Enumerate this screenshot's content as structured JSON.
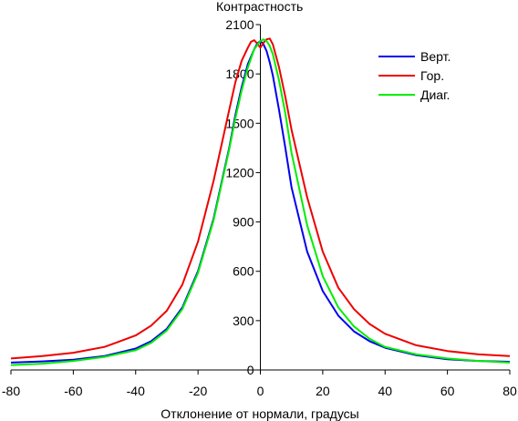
{
  "chart_data": {
    "type": "line",
    "ylabel": "Контрастность",
    "xlabel": "Отклонение от нормали, градусы",
    "xlim": [
      -80,
      80
    ],
    "ylim": [
      0,
      2100
    ],
    "xticks": [
      -80,
      -60,
      -40,
      -20,
      0,
      20,
      40,
      60,
      80
    ],
    "yticks": [
      0,
      300,
      600,
      900,
      1200,
      1500,
      1800,
      2100
    ],
    "legend_position": "top-right",
    "series": [
      {
        "name": "Верт.",
        "color": "#0000ee",
        "x": [
          -80,
          -70,
          -60,
          -50,
          -40,
          -35,
          -30,
          -25,
          -20,
          -15,
          -10,
          -8,
          -6,
          -4,
          -2,
          -1,
          0,
          1,
          2,
          3,
          4,
          6,
          8,
          10,
          15,
          20,
          25,
          30,
          35,
          40,
          50,
          60,
          70,
          80
        ],
        "y": [
          45,
          52,
          62,
          85,
          130,
          175,
          250,
          380,
          600,
          920,
          1350,
          1550,
          1720,
          1860,
          1950,
          1985,
          2000,
          1980,
          1940,
          1870,
          1790,
          1580,
          1350,
          1110,
          720,
          480,
          330,
          235,
          175,
          135,
          90,
          65,
          55,
          50
        ]
      },
      {
        "name": "Гор.",
        "color": "#ee0000",
        "x": [
          -80,
          -70,
          -60,
          -50,
          -40,
          -35,
          -30,
          -25,
          -20,
          -15,
          -10,
          -8,
          -6,
          -4,
          -3,
          -2,
          -1,
          0,
          1,
          2,
          3,
          4,
          6,
          8,
          10,
          15,
          20,
          25,
          30,
          35,
          40,
          50,
          60,
          70,
          80
        ],
        "y": [
          70,
          85,
          105,
          140,
          210,
          270,
          360,
          520,
          780,
          1150,
          1580,
          1750,
          1880,
          1960,
          1995,
          2005,
          1985,
          1960,
          1990,
          2010,
          2015,
          1980,
          1840,
          1660,
          1460,
          1050,
          720,
          500,
          370,
          280,
          220,
          150,
          115,
          95,
          85
        ]
      },
      {
        "name": "Диаг.",
        "color": "#00ee00",
        "x": [
          -80,
          -70,
          -60,
          -50,
          -40,
          -35,
          -30,
          -25,
          -20,
          -15,
          -10,
          -8,
          -6,
          -4,
          -2,
          0,
          1,
          2,
          3,
          4,
          6,
          8,
          10,
          15,
          20,
          25,
          30,
          35,
          40,
          50,
          60,
          70,
          80
        ],
        "y": [
          30,
          38,
          55,
          80,
          120,
          165,
          240,
          370,
          590,
          910,
          1340,
          1530,
          1700,
          1840,
          1950,
          2000,
          2010,
          2000,
          1970,
          1920,
          1760,
          1560,
          1320,
          880,
          570,
          380,
          265,
          190,
          140,
          95,
          70,
          55,
          45
        ]
      }
    ]
  }
}
